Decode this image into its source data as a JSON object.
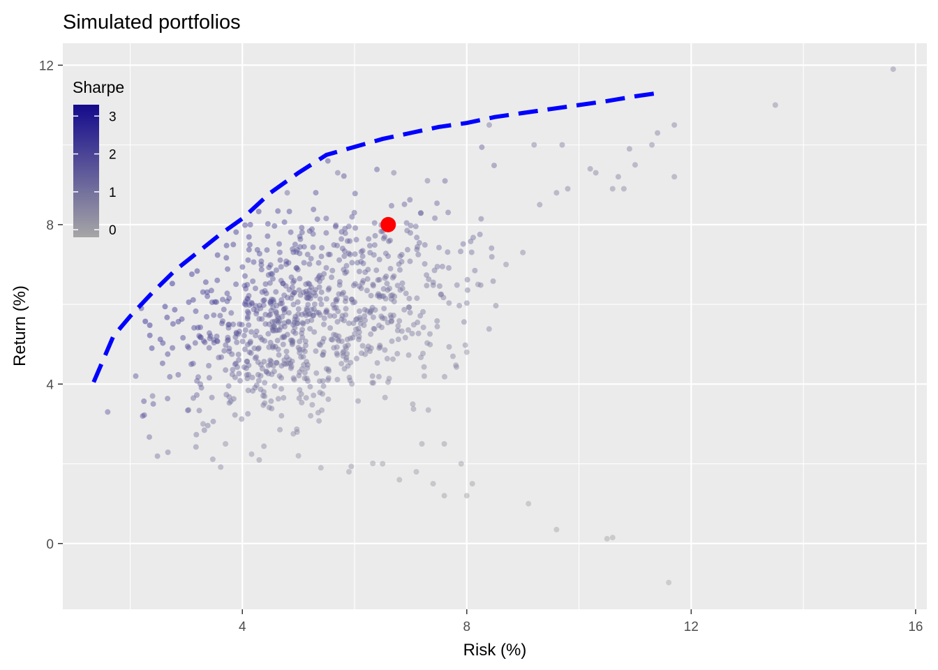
{
  "chart_data": {
    "type": "scatter",
    "title": "Simulated portfolios",
    "xlabel": "Risk (%)",
    "ylabel": "Return (%)",
    "xlim": [
      0.8,
      16.2
    ],
    "ylim": [
      -1.65,
      12.55
    ],
    "x_ticks": [
      4,
      8,
      12,
      16
    ],
    "x_tick_labels": [
      "4",
      "8",
      "12",
      "16"
    ],
    "y_ticks": [
      0,
      4,
      8,
      12
    ],
    "y_tick_labels": [
      "0",
      "4",
      "8",
      "12"
    ],
    "grid": true,
    "legend": {
      "title": "Sharpe",
      "position": "top-left",
      "type": "colorbar",
      "ticks": [
        0,
        1,
        2,
        3
      ],
      "tick_labels": [
        "0",
        "1",
        "2",
        "3"
      ],
      "range": [
        -0.2,
        3.3
      ],
      "color_low": "#a6a6a6",
      "color_high": "#140a8c"
    },
    "colors": {
      "panel_background": "#ebebeb",
      "grid": "#ffffff",
      "frontier": "#0000ff",
      "highlight": "#ff0000",
      "point_base": "#6a4c9c"
    },
    "frontier": {
      "style": "dashed",
      "x": [
        1.35,
        1.7,
        2.0,
        2.4,
        2.8,
        3.2,
        3.6,
        4.0,
        4.5,
        5.0,
        5.5,
        6.0,
        6.5,
        7.0,
        7.5,
        8.0,
        8.5,
        9.0,
        9.5,
        10.0,
        10.5,
        11.0,
        11.4
      ],
      "y": [
        4.05,
        5.2,
        5.7,
        6.3,
        6.85,
        7.3,
        7.75,
        8.15,
        8.8,
        9.3,
        9.75,
        9.95,
        10.15,
        10.3,
        10.45,
        10.55,
        10.7,
        10.8,
        10.9,
        11.0,
        11.1,
        11.22,
        11.3
      ]
    },
    "highlight_point": {
      "x": 6.6,
      "y": 8.0,
      "label": ""
    },
    "outlier_points": [
      {
        "x": 1.6,
        "y": 3.3,
        "sharpe": 1.6
      },
      {
        "x": 2.1,
        "y": 4.2,
        "sharpe": 1.7
      },
      {
        "x": 2.4,
        "y": 3.7,
        "sharpe": 1.2
      },
      {
        "x": 2.2,
        "y": 5.9,
        "sharpe": 2.2
      },
      {
        "x": 3.3,
        "y": 3.0,
        "sharpe": 0.7
      },
      {
        "x": 3.7,
        "y": 2.5,
        "sharpe": 0.5
      },
      {
        "x": 5.0,
        "y": 2.2,
        "sharpe": 0.3
      },
      {
        "x": 5.4,
        "y": 1.9,
        "sharpe": 0.2
      },
      {
        "x": 5.9,
        "y": 1.8,
        "sharpe": 0.2
      },
      {
        "x": 6.5,
        "y": 2.0,
        "sharpe": 0.2
      },
      {
        "x": 6.8,
        "y": 1.6,
        "sharpe": 0.1
      },
      {
        "x": 7.1,
        "y": 1.8,
        "sharpe": 0.1
      },
      {
        "x": 7.4,
        "y": 1.5,
        "sharpe": 0.1
      },
      {
        "x": 7.6,
        "y": 1.2,
        "sharpe": 0.0
      },
      {
        "x": 8.0,
        "y": 1.2,
        "sharpe": 0.0
      },
      {
        "x": 8.1,
        "y": 1.5,
        "sharpe": 0.0
      },
      {
        "x": 7.9,
        "y": 2.0,
        "sharpe": 0.1
      },
      {
        "x": 9.1,
        "y": 1.0,
        "sharpe": -0.1
      },
      {
        "x": 9.6,
        "y": 0.35,
        "sharpe": -0.1
      },
      {
        "x": 10.5,
        "y": 0.12,
        "sharpe": -0.1
      },
      {
        "x": 10.6,
        "y": 0.15,
        "sharpe": -0.1
      },
      {
        "x": 11.6,
        "y": -0.98,
        "sharpe": -0.2
      },
      {
        "x": 7.6,
        "y": 2.5,
        "sharpe": 0.2
      },
      {
        "x": 7.2,
        "y": 2.5,
        "sharpe": 0.2
      },
      {
        "x": 8.0,
        "y": 4.8,
        "sharpe": 0.4
      },
      {
        "x": 8.2,
        "y": 6.5,
        "sharpe": 0.6
      },
      {
        "x": 8.7,
        "y": 7.0,
        "sharpe": 0.6
      },
      {
        "x": 9.0,
        "y": 7.3,
        "sharpe": 0.6
      },
      {
        "x": 9.3,
        "y": 8.5,
        "sharpe": 0.7
      },
      {
        "x": 9.6,
        "y": 8.8,
        "sharpe": 0.7
      },
      {
        "x": 9.8,
        "y": 8.9,
        "sharpe": 0.7
      },
      {
        "x": 9.7,
        "y": 10.0,
        "sharpe": 0.8
      },
      {
        "x": 10.2,
        "y": 9.4,
        "sharpe": 0.7
      },
      {
        "x": 10.3,
        "y": 9.3,
        "sharpe": 0.7
      },
      {
        "x": 10.6,
        "y": 8.9,
        "sharpe": 0.6
      },
      {
        "x": 10.7,
        "y": 9.2,
        "sharpe": 0.7
      },
      {
        "x": 10.8,
        "y": 8.9,
        "sharpe": 0.6
      },
      {
        "x": 10.9,
        "y": 9.9,
        "sharpe": 0.7
      },
      {
        "x": 11.0,
        "y": 9.5,
        "sharpe": 0.7
      },
      {
        "x": 11.3,
        "y": 10.0,
        "sharpe": 0.7
      },
      {
        "x": 11.4,
        "y": 10.3,
        "sharpe": 0.7
      },
      {
        "x": 11.7,
        "y": 10.5,
        "sharpe": 0.7
      },
      {
        "x": 11.7,
        "y": 9.2,
        "sharpe": 0.6
      },
      {
        "x": 13.5,
        "y": 11.0,
        "sharpe": 0.6
      },
      {
        "x": 15.6,
        "y": 11.9,
        "sharpe": 0.6
      },
      {
        "x": 9.2,
        "y": 10.0,
        "sharpe": 0.8
      },
      {
        "x": 8.4,
        "y": 10.5,
        "sharpe": 1.0
      },
      {
        "x": 7.3,
        "y": 9.1,
        "sharpe": 0.9
      },
      {
        "x": 6.7,
        "y": 9.3,
        "sharpe": 1.0
      },
      {
        "x": 5.7,
        "y": 9.3,
        "sharpe": 1.2
      },
      {
        "x": 4.8,
        "y": 8.8,
        "sharpe": 1.3
      }
    ],
    "cloud_params": {
      "count": 880,
      "center_x": 4.9,
      "center_y": 5.6,
      "risk_sd": 1.15,
      "return_sd": 1.25,
      "point_alpha": 0.45
    }
  }
}
